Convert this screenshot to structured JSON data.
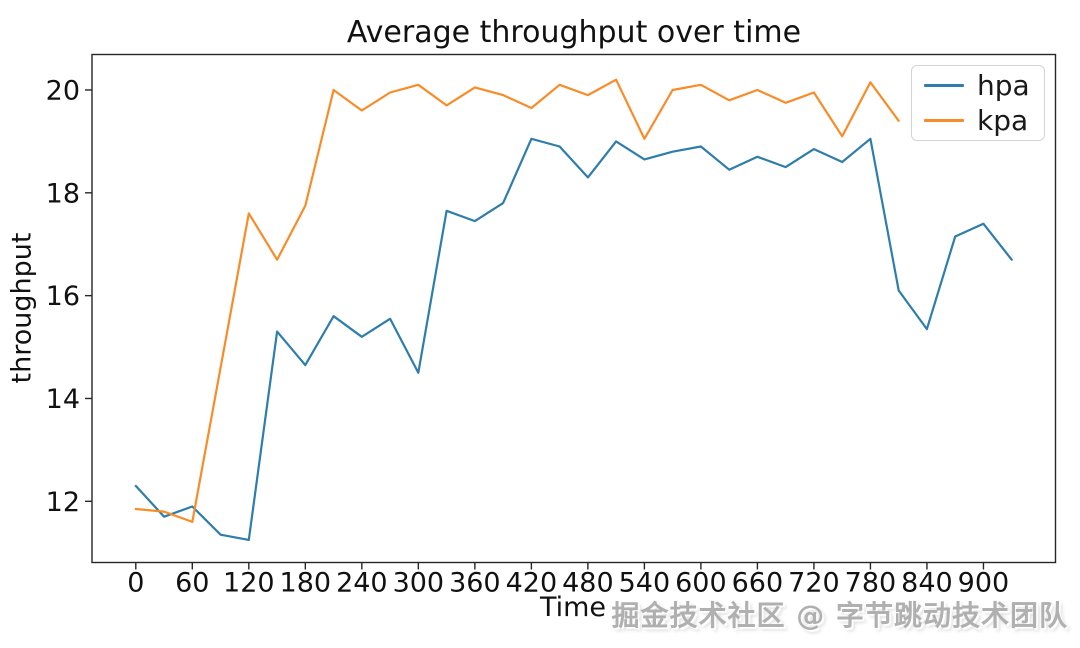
{
  "watermark": {
    "text": "掘金技术社区 @ 字节跳动技术团队"
  },
  "chart_data": {
    "type": "line",
    "title": "Average throughput over time",
    "xlabel": "Time",
    "ylabel": "throughput",
    "x_ticks": [
      0,
      60,
      120,
      180,
      240,
      300,
      360,
      420,
      480,
      540,
      600,
      660,
      720,
      780,
      840,
      900
    ],
    "y_ticks": [
      12,
      14,
      16,
      18,
      20
    ],
    "xlim": [
      -46.5,
      976.5
    ],
    "ylim": [
      10.81,
      20.69
    ],
    "grid": false,
    "legend_position": "upper right",
    "sampling_interval": 30,
    "series": [
      {
        "name": "hpa",
        "color": "#2e7dab",
        "x": [
          0,
          30,
          60,
          90,
          120,
          150,
          180,
          210,
          240,
          270,
          300,
          330,
          360,
          390,
          420,
          450,
          480,
          510,
          540,
          570,
          600,
          630,
          660,
          690,
          720,
          750,
          780,
          810,
          840,
          870,
          900,
          930
        ],
        "values": [
          12.3,
          11.7,
          11.9,
          11.35,
          11.25,
          15.3,
          14.65,
          15.6,
          15.2,
          15.55,
          14.5,
          17.65,
          17.45,
          17.8,
          19.05,
          18.9,
          18.3,
          19.0,
          18.65,
          18.8,
          18.9,
          18.45,
          18.7,
          18.5,
          18.85,
          18.6,
          19.05,
          16.1,
          15.35,
          17.15,
          17.4,
          16.7
        ]
      },
      {
        "name": "kpa",
        "color": "#f78c28",
        "x": [
          0,
          30,
          60,
          90,
          120,
          150,
          180,
          210,
          240,
          270,
          300,
          330,
          360,
          390,
          420,
          450,
          480,
          510,
          540,
          570,
          600,
          630,
          660,
          690,
          720,
          750,
          780,
          810
        ],
        "values": [
          11.85,
          11.8,
          11.6,
          14.6,
          17.6,
          16.7,
          17.75,
          20.0,
          19.6,
          19.95,
          20.1,
          19.7,
          20.05,
          19.9,
          19.65,
          20.1,
          19.9,
          20.2,
          19.05,
          20.0,
          20.1,
          19.8,
          20.0,
          19.75,
          19.95,
          19.1,
          20.15,
          19.4
        ]
      }
    ]
  }
}
